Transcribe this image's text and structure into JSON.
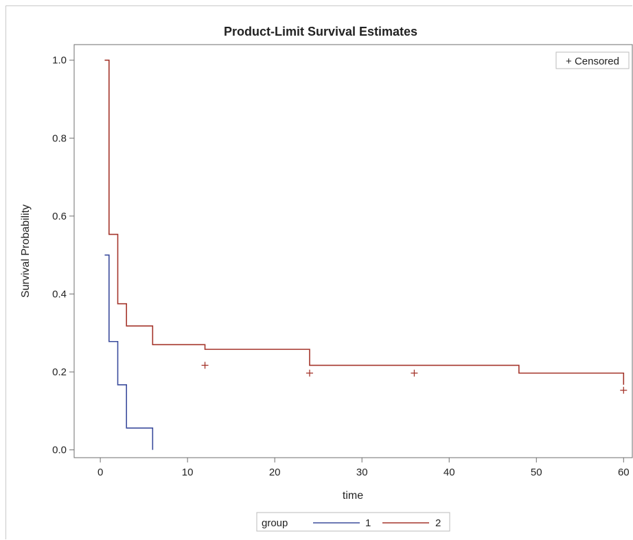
{
  "chart_data": {
    "type": "line",
    "subtype": "step",
    "title": "Product-Limit Survival Estimates",
    "xlabel": "time",
    "ylabel": "Survival Probability",
    "xlim": [
      -3,
      61
    ],
    "ylim": [
      -0.02,
      1.04
    ],
    "xticks": [
      0,
      10,
      20,
      30,
      40,
      50,
      60
    ],
    "yticks": [
      0.0,
      0.2,
      0.4,
      0.6,
      0.8,
      1.0
    ],
    "ytick_labels": [
      "0.0",
      "0.2",
      "0.4",
      "0.6",
      "0.8",
      "1.0"
    ],
    "grid": false,
    "censor_legend": "+ Censored",
    "legend": {
      "title": "group",
      "position": "bottom",
      "entries": [
        {
          "name": "1",
          "color": "#3a4b9c"
        },
        {
          "name": "2",
          "color": "#a4342a"
        }
      ]
    },
    "series": [
      {
        "name": "1",
        "color": "#3a4b9c",
        "steps": [
          [
            0.5,
            0.5
          ],
          [
            1,
            0.278
          ],
          [
            2,
            0.167
          ],
          [
            3,
            0.056
          ],
          [
            6,
            0.0
          ]
        ],
        "end_x": 6,
        "censored": []
      },
      {
        "name": "2",
        "color": "#a4342a",
        "steps": [
          [
            0.5,
            1.0
          ],
          [
            1,
            0.553
          ],
          [
            2,
            0.375
          ],
          [
            3,
            0.318
          ],
          [
            6,
            0.27
          ],
          [
            12,
            0.258
          ],
          [
            24,
            0.217
          ],
          [
            48,
            0.197
          ],
          [
            60,
            0.167
          ]
        ],
        "end_x": 60,
        "censored": [
          [
            12,
            0.217
          ],
          [
            24,
            0.197
          ],
          [
            36,
            0.197
          ],
          [
            60,
            0.153
          ]
        ]
      }
    ]
  }
}
